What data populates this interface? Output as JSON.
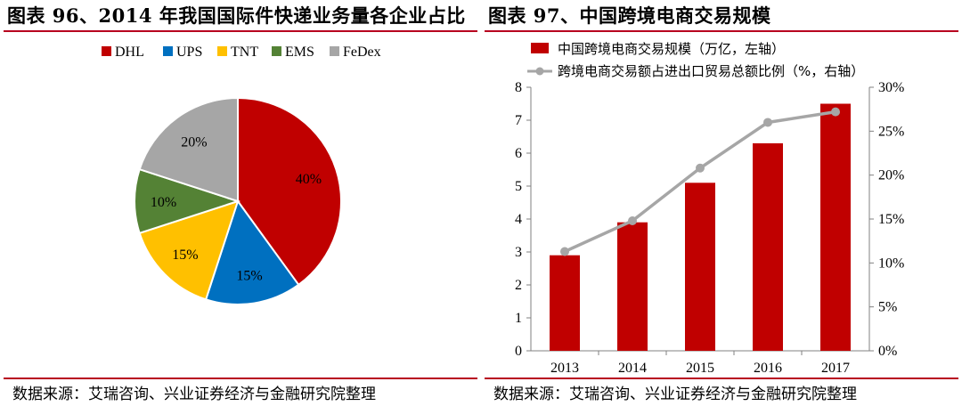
{
  "left": {
    "title": "图表 96、2014 年我国国际件快递业务量各企业占比",
    "source": "数据来源：艾瑞咨询、兴业证券经济与金融研究院整理"
  },
  "right": {
    "title": "图表 97、中国跨境电商交易规模",
    "source": "数据来源：艾瑞咨询、兴业证券经济与金融研究院整理"
  },
  "chart_data": [
    {
      "type": "pie",
      "title": "2014 年我国国际件快递业务量各企业占比",
      "legend_position": "top",
      "slices": [
        {
          "name": "DHL",
          "value": 40,
          "label": "40%",
          "color": "#c00000"
        },
        {
          "name": "UPS",
          "value": 15,
          "label": "15%",
          "color": "#0070c0"
        },
        {
          "name": "TNT",
          "value": 15,
          "label": "15%",
          "color": "#ffc000"
        },
        {
          "name": "EMS",
          "value": 10,
          "label": "10%",
          "color": "#548235"
        },
        {
          "name": "FeDex",
          "value": 20,
          "label": "20%",
          "color": "#a6a6a6"
        }
      ]
    },
    {
      "type": "bar",
      "title": "中国跨境电商交易规模",
      "legend_position": "top",
      "categories": [
        "2013",
        "2014",
        "2015",
        "2016",
        "2017"
      ],
      "ylim": [
        0,
        8
      ],
      "yticks": [
        "0",
        "1",
        "2",
        "3",
        "4",
        "5",
        "6",
        "7",
        "8"
      ],
      "y2lim": [
        0,
        30
      ],
      "y2ticks": [
        "0%",
        "5%",
        "10%",
        "15%",
        "20%",
        "25%",
        "30%"
      ],
      "grid": false,
      "series": [
        {
          "name": "中国跨境电商交易规模（万亿，左轴）",
          "kind": "bar",
          "axis": "left",
          "values": [
            2.9,
            3.9,
            5.1,
            6.3,
            7.5
          ],
          "color": "#c00000"
        },
        {
          "name": "跨境电商交易额占进出口贸易总额比例（%，右轴）",
          "kind": "line",
          "axis": "right",
          "values": [
            11.3,
            14.8,
            20.8,
            26.0,
            27.2
          ],
          "color": "#a6a6a6"
        }
      ]
    }
  ]
}
